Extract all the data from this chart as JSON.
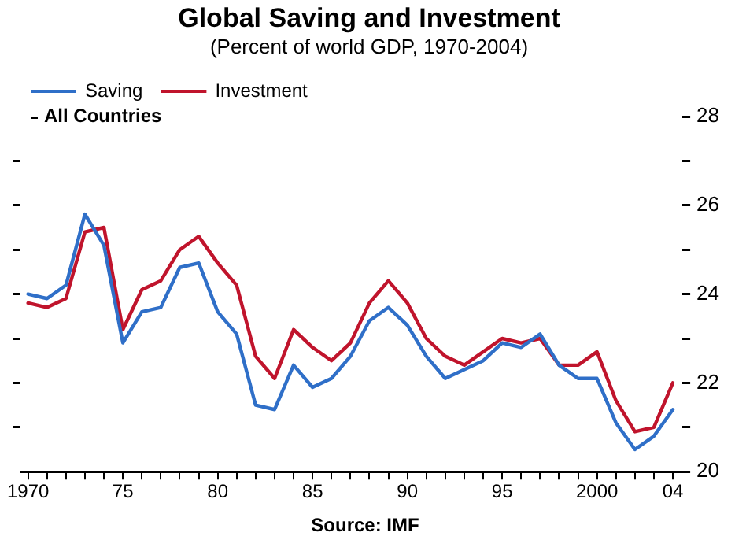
{
  "chart_data": {
    "type": "line",
    "title": "Global Saving and Investment",
    "subtitle": "(Percent of world GDP, 1970-2004)",
    "annotations": [
      "All Countries",
      "Source: IMF"
    ],
    "x": [
      1970,
      1971,
      1972,
      1973,
      1974,
      1975,
      1976,
      1977,
      1978,
      1979,
      1980,
      1981,
      1982,
      1983,
      1984,
      1985,
      1986,
      1987,
      1988,
      1989,
      1990,
      1991,
      1992,
      1993,
      1994,
      1995,
      1996,
      1997,
      1998,
      1999,
      2000,
      2001,
      2002,
      2003,
      2004
    ],
    "series": [
      {
        "name": "Saving",
        "color": "#2f6fc8",
        "values": [
          24.0,
          23.9,
          24.2,
          25.8,
          25.1,
          22.9,
          23.6,
          23.7,
          24.6,
          24.7,
          23.6,
          23.1,
          21.5,
          21.4,
          22.4,
          21.9,
          22.1,
          22.6,
          23.4,
          23.7,
          23.3,
          22.6,
          22.1,
          22.3,
          22.5,
          22.9,
          22.8,
          23.1,
          22.4,
          22.1,
          22.1,
          21.1,
          20.5,
          20.8,
          21.4
        ]
      },
      {
        "name": "Investment",
        "color": "#c0142c",
        "values": [
          23.8,
          23.7,
          23.9,
          25.4,
          25.5,
          23.2,
          24.1,
          24.3,
          25.0,
          25.3,
          24.7,
          24.2,
          22.6,
          22.1,
          23.2,
          22.8,
          22.5,
          22.9,
          23.8,
          24.3,
          23.8,
          23.0,
          22.6,
          22.4,
          22.7,
          23.0,
          22.9,
          23.0,
          22.4,
          22.4,
          22.7,
          21.6,
          20.9,
          21.0,
          22.0
        ]
      }
    ],
    "xlim": [
      1969.6,
      2004.5
    ],
    "xticks": [
      {
        "value": 1970,
        "label": "1970"
      },
      {
        "value": 1971,
        "label": null
      },
      {
        "value": 1972,
        "label": null
      },
      {
        "value": 1973,
        "label": null
      },
      {
        "value": 1974,
        "label": null
      },
      {
        "value": 1975,
        "label": "75"
      },
      {
        "value": 1976,
        "label": null
      },
      {
        "value": 1977,
        "label": null
      },
      {
        "value": 1978,
        "label": null
      },
      {
        "value": 1979,
        "label": null
      },
      {
        "value": 1980,
        "label": "80"
      },
      {
        "value": 1981,
        "label": null
      },
      {
        "value": 1982,
        "label": null
      },
      {
        "value": 1983,
        "label": null
      },
      {
        "value": 1984,
        "label": null
      },
      {
        "value": 1985,
        "label": "85"
      },
      {
        "value": 1986,
        "label": null
      },
      {
        "value": 1987,
        "label": null
      },
      {
        "value": 1988,
        "label": null
      },
      {
        "value": 1989,
        "label": null
      },
      {
        "value": 1990,
        "label": "90"
      },
      {
        "value": 1991,
        "label": null
      },
      {
        "value": 1992,
        "label": null
      },
      {
        "value": 1993,
        "label": null
      },
      {
        "value": 1994,
        "label": null
      },
      {
        "value": 1995,
        "label": "95"
      },
      {
        "value": 1996,
        "label": null
      },
      {
        "value": 1997,
        "label": null
      },
      {
        "value": 1998,
        "label": null
      },
      {
        "value": 1999,
        "label": null
      },
      {
        "value": 2000,
        "label": "2000"
      },
      {
        "value": 2001,
        "label": null
      },
      {
        "value": 2002,
        "label": null
      },
      {
        "value": 2003,
        "label": null
      },
      {
        "value": 2004,
        "label": "04"
      }
    ],
    "ylim": [
      20,
      28
    ],
    "yticks": [
      20,
      {
        "value": 21,
        "label": null
      },
      22,
      {
        "value": 23,
        "label": null
      },
      24,
      {
        "value": 25,
        "label": null
      },
      26,
      {
        "value": 27,
        "label": null
      },
      28
    ],
    "grid": false,
    "legend": "top left",
    "marker": "none",
    "line_style": "solid"
  }
}
